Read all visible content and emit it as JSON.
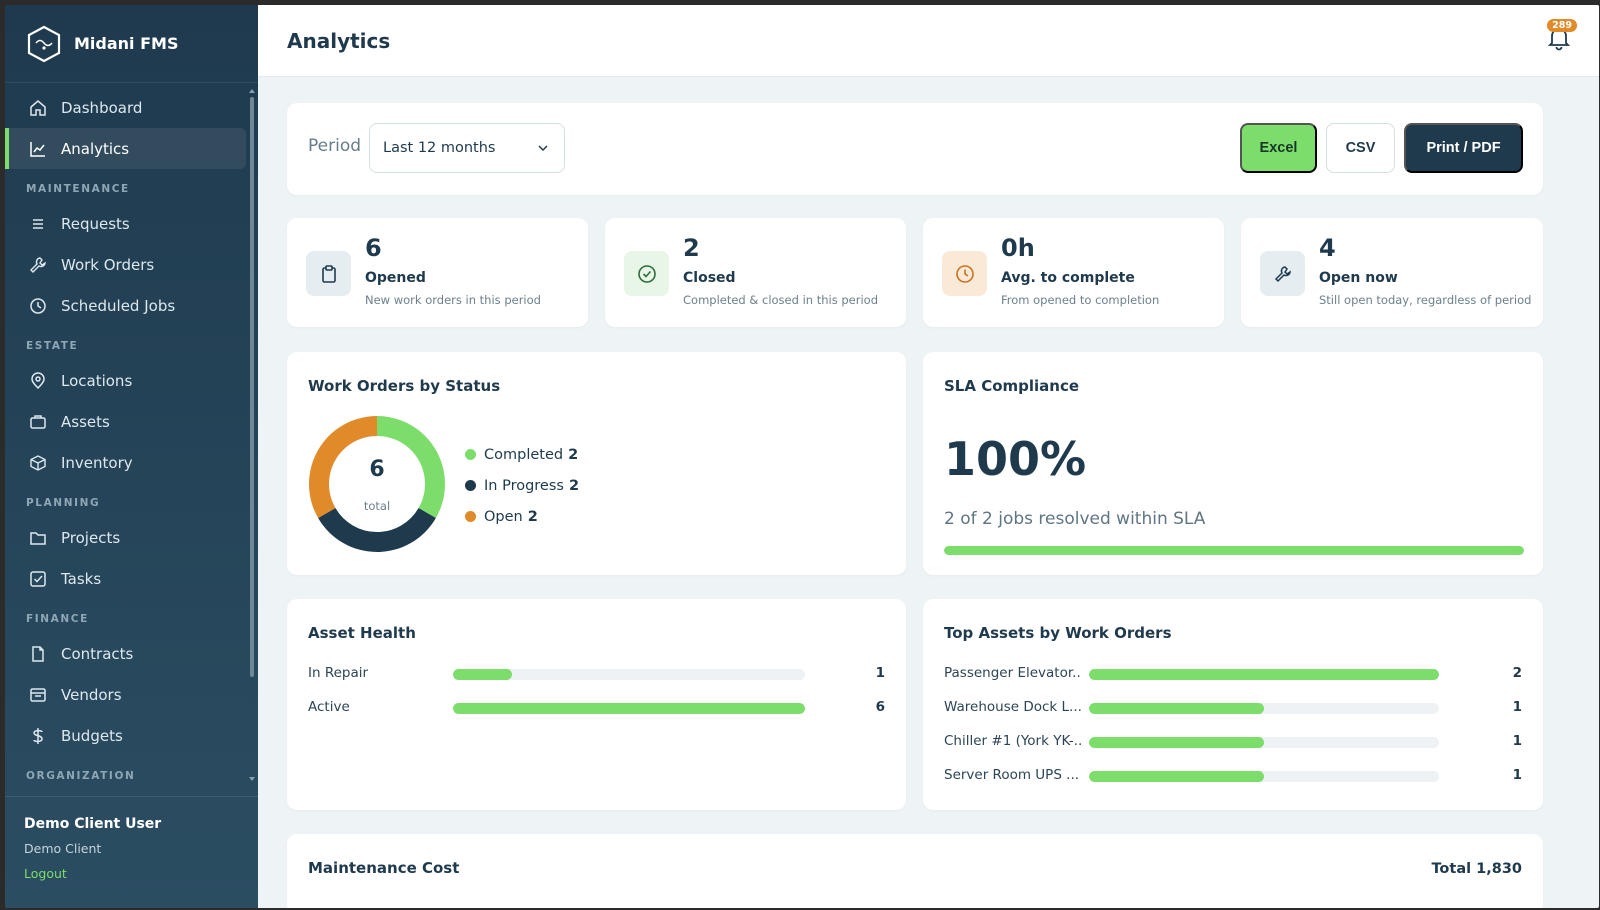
{
  "brand": {
    "name": "Midani FMS"
  },
  "nav": {
    "dashboard": "Dashboard",
    "analytics": "Analytics",
    "section_maintenance": "MAINTENANCE",
    "requests": "Requests",
    "work_orders": "Work Orders",
    "scheduled_jobs": "Scheduled Jobs",
    "section_estate": "ESTATE",
    "locations": "Locations",
    "assets": "Assets",
    "inventory": "Inventory",
    "section_planning": "PLANNING",
    "projects": "Projects",
    "tasks": "Tasks",
    "section_finance": "FINANCE",
    "contracts": "Contracts",
    "vendors": "Vendors",
    "budgets": "Budgets",
    "section_organization": "ORGANIZATION"
  },
  "user": {
    "name": "Demo Client User",
    "org": "Demo Client",
    "logout": "Logout"
  },
  "header": {
    "title": "Analytics",
    "notification_count": "289"
  },
  "filter": {
    "period_label": "Period",
    "period_value": "Last 12 months",
    "excel": "Excel",
    "csv": "CSV",
    "print": "Print / PDF"
  },
  "kpis": [
    {
      "value": "6",
      "label": "Opened",
      "sub": "New work orders in this period",
      "icon": "clipboard-icon"
    },
    {
      "value": "2",
      "label": "Closed",
      "sub": "Completed & closed in this period",
      "icon": "check-circle-icon"
    },
    {
      "value": "0h",
      "label": "Avg. to complete",
      "sub": "From opened to completion",
      "icon": "clock-icon"
    },
    {
      "value": "4",
      "label": "Open now",
      "sub": "Still open today, regardless of period",
      "icon": "wrench-icon"
    }
  ],
  "status_panel": {
    "title": "Work Orders by Status",
    "total": "6",
    "total_label": "total",
    "items": [
      {
        "label": "Completed",
        "count": "2"
      },
      {
        "label": "In Progress",
        "count": "2"
      },
      {
        "label": "Open",
        "count": "2"
      }
    ]
  },
  "sla": {
    "title": "SLA Compliance",
    "value": "100%",
    "sub": "2 of 2 jobs resolved within SLA",
    "fraction": 1.0
  },
  "asset_health": {
    "title": "Asset Health",
    "rows": [
      {
        "label": "In Repair",
        "count": "1",
        "fraction": 0.1667
      },
      {
        "label": "Active",
        "count": "6",
        "fraction": 1.0
      }
    ]
  },
  "top_assets": {
    "title": "Top Assets by Work Orders",
    "rows": [
      {
        "label": "Passenger Elevator...",
        "count": "2",
        "fraction": 1.0
      },
      {
        "label": "Warehouse Dock L...",
        "count": "1",
        "fraction": 0.5
      },
      {
        "label": "Chiller #1 (York YK-...",
        "count": "1",
        "fraction": 0.5
      },
      {
        "label": "Server Room UPS ...",
        "count": "1",
        "fraction": 0.5
      }
    ]
  },
  "cost": {
    "title": "Maintenance Cost",
    "total": "Total 1,830"
  },
  "chart_data": {
    "type": "pie",
    "categories": [
      "Completed",
      "In Progress",
      "Open"
    ],
    "values": [
      2,
      2,
      2
    ],
    "colors": [
      "#7ddd6a",
      "#1f3a4d",
      "#e08a2a"
    ]
  },
  "colors": {
    "accent_green": "#7ddd6a",
    "navy": "#1f3a4d",
    "orange": "#e08a2a"
  }
}
